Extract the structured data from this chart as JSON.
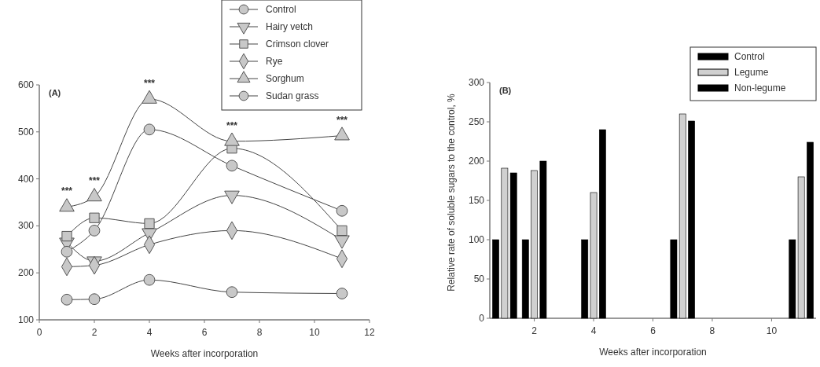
{
  "chart_data": [
    {
      "type": "line",
      "title": "(A)",
      "xlabel": "Weeks after incorporation",
      "xlim": [
        0,
        12
      ],
      "xticks": [
        0,
        2,
        4,
        6,
        8,
        10,
        12
      ],
      "ylim": [
        100,
        600
      ],
      "yticks": [
        100,
        200,
        300,
        400,
        500,
        600
      ],
      "grid": false,
      "legend": "top right",
      "line_style": "solid",
      "x": [
        1,
        2,
        4,
        7,
        11
      ],
      "series": [
        {
          "name": "Control",
          "color": "#c8c8c8",
          "marker": "circle",
          "values": [
            143,
            144,
            185,
            159,
            156
          ]
        },
        {
          "name": "Hairy vetch",
          "color": "#c8c8c8",
          "marker": "triangle-down",
          "values": [
            265,
            225,
            285,
            365,
            270
          ]
        },
        {
          "name": "Crimson clover",
          "color": "#c8c8c8",
          "marker": "square",
          "values": [
            278,
            317,
            305,
            465,
            290
          ]
        },
        {
          "name": "Rye",
          "color": "#c8c8c8",
          "marker": "diamond",
          "values": [
            213,
            216,
            260,
            290,
            230
          ]
        },
        {
          "name": "Sorghum",
          "color": "#c8c8c8",
          "marker": "triangle",
          "values": [
            340,
            362,
            570,
            480,
            492
          ]
        },
        {
          "name": "Sudan grass",
          "color": "#c8c8c8",
          "marker": "circle",
          "values": [
            245,
            290,
            505,
            428,
            332
          ]
        }
      ],
      "annotations": [
        {
          "text": "***",
          "x": 1,
          "y": 340
        },
        {
          "text": "***",
          "x": 2,
          "y": 362
        },
        {
          "text": "***",
          "x": 4,
          "y": 570
        },
        {
          "text": "***",
          "x": 7,
          "y": 480
        },
        {
          "text": "***",
          "x": 11,
          "y": 492
        }
      ]
    },
    {
      "type": "bar",
      "title": "(B)",
      "xlabel": "Weeks after incorporation",
      "ylabel": "Relative rate of soluble sugars to the control, %",
      "xlim": [
        0.5,
        11.5
      ],
      "xticks": [
        2,
        4,
        6,
        8,
        10
      ],
      "ylim": [
        0,
        300
      ],
      "yticks": [
        0,
        50,
        100,
        150,
        200,
        250,
        300
      ],
      "grid": false,
      "legend": "top right",
      "x": [
        1,
        2,
        4,
        7,
        11
      ],
      "series": [
        {
          "name": "Control",
          "color": "#000000",
          "values": [
            100,
            100,
            100,
            100,
            100
          ]
        },
        {
          "name": "Legume",
          "color": "#d0d0d0",
          "values": [
            191,
            188,
            160,
            260,
            180
          ]
        },
        {
          "name": "Non-legume",
          "color": "#000000",
          "values": [
            185,
            200,
            240,
            251,
            224
          ]
        }
      ]
    }
  ]
}
